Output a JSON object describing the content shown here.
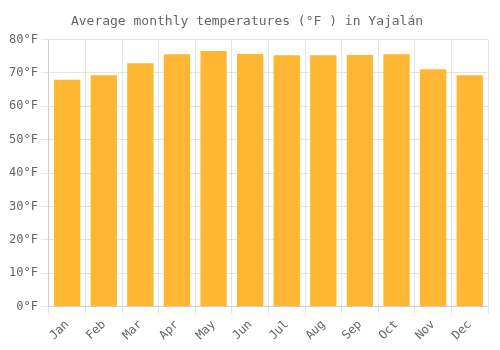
{
  "chart_data": {
    "type": "bar",
    "title": "Average monthly temperatures (°F ) in Yajalán",
    "categories": [
      "Jan",
      "Feb",
      "Mar",
      "Apr",
      "May",
      "Jun",
      "Jul",
      "Aug",
      "Sep",
      "Oct",
      "Nov",
      "Dec"
    ],
    "values": [
      68.0,
      69.3,
      72.9,
      75.6,
      76.6,
      75.7,
      75.3,
      75.3,
      75.4,
      75.6,
      71.1,
      69.3
    ],
    "color": "#FFB733",
    "ylim": [
      0,
      80
    ],
    "yticks": [
      {
        "value": 0,
        "label": "0°F"
      },
      {
        "value": 10,
        "label": "10°F"
      },
      {
        "value": 20,
        "label": "20°F"
      },
      {
        "value": 30,
        "label": "30°F"
      },
      {
        "value": 40,
        "label": "40°F"
      },
      {
        "value": 50,
        "label": "50°F"
      },
      {
        "value": 60,
        "label": "60°F"
      },
      {
        "value": 70,
        "label": "70°F"
      },
      {
        "value": 80,
        "label": "80°F"
      }
    ],
    "grid": true
  }
}
